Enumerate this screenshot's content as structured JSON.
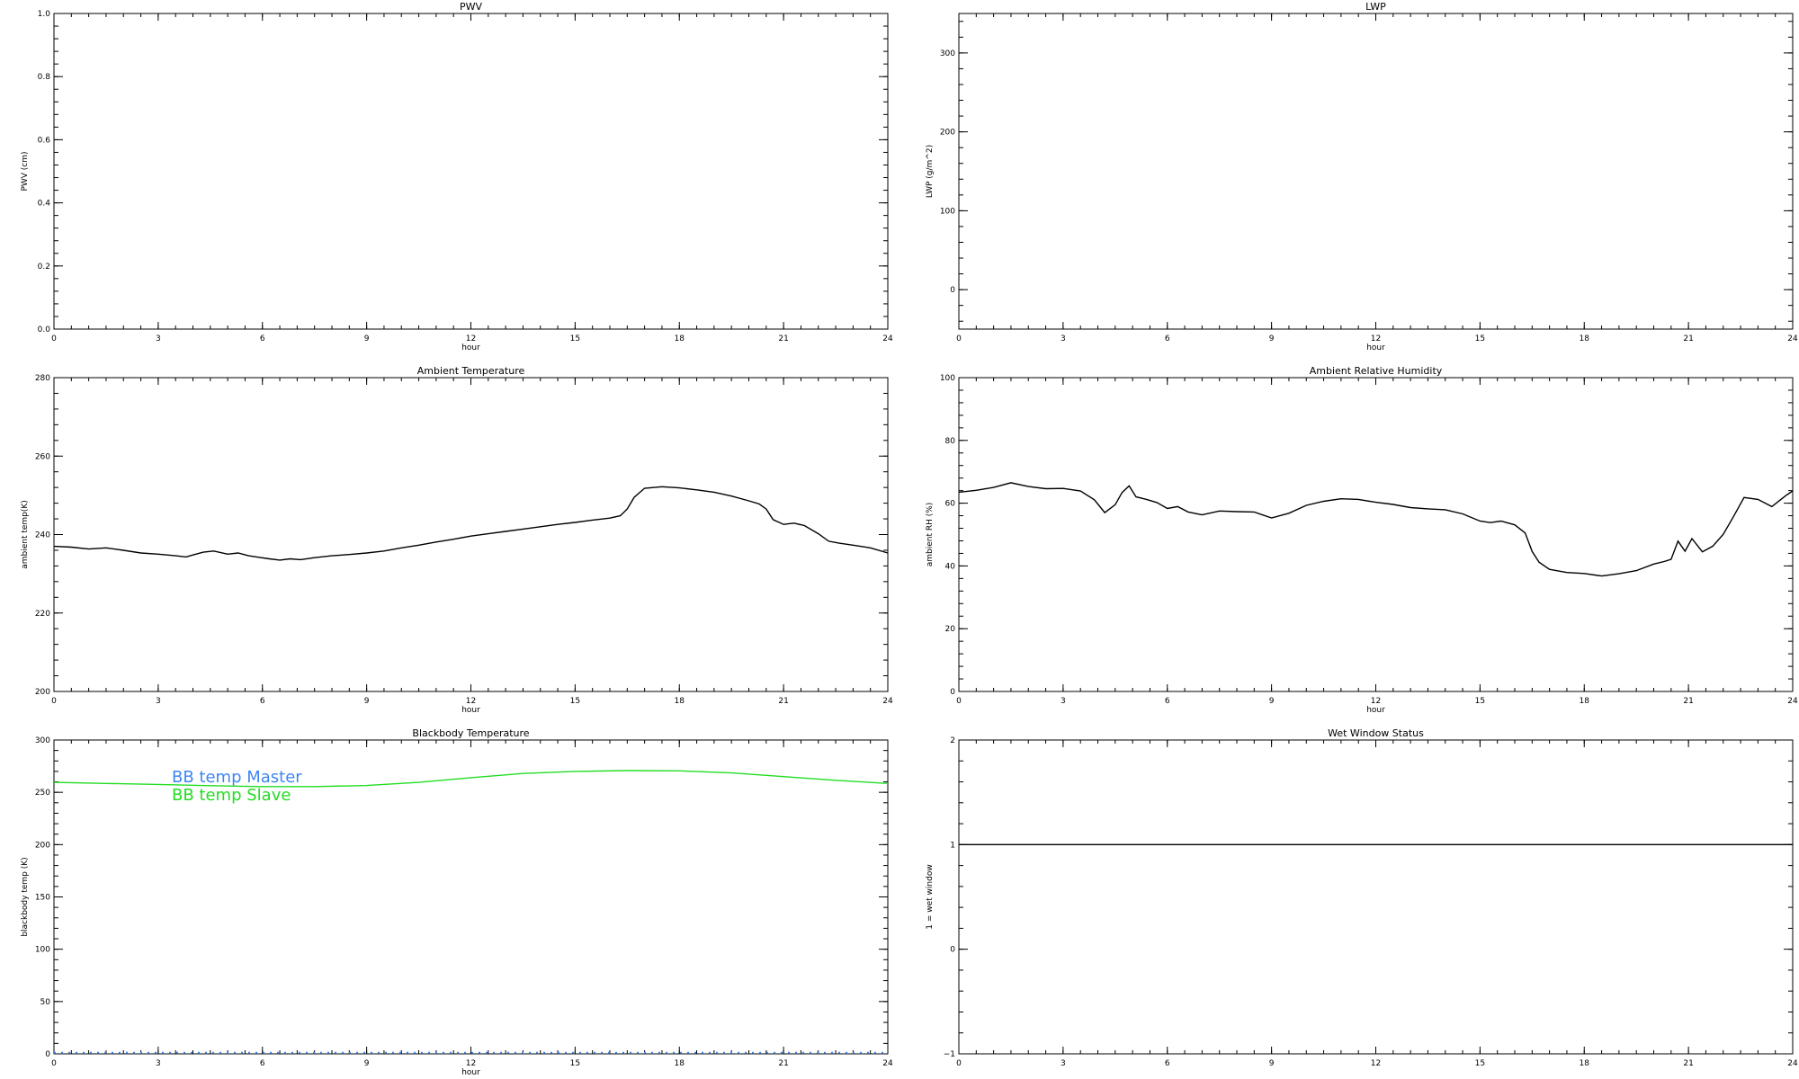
{
  "chart_data": [
    {
      "type": "line",
      "title": "PWV",
      "xlabel": "hour",
      "ylabel": "PWV (cm)",
      "xlim": [
        0,
        24
      ],
      "ylim": [
        0,
        1
      ],
      "xticks": [
        "0",
        "3",
        "6",
        "9",
        "12",
        "15",
        "18",
        "21",
        "24"
      ],
      "yticks": [
        "0.0",
        "0.2",
        "0.4",
        "0.6",
        "0.8",
        "1.0"
      ],
      "series": []
    },
    {
      "type": "line",
      "title": "LWP",
      "xlabel": "hour",
      "ylabel": "LWP (g/m^2)",
      "xlim": [
        0,
        24
      ],
      "ylim": [
        -50,
        350
      ],
      "xticks": [
        "0",
        "3",
        "6",
        "9",
        "12",
        "15",
        "18",
        "21",
        "24"
      ],
      "yticks": [
        "0",
        "100",
        "200",
        "300"
      ],
      "series": []
    },
    {
      "type": "line",
      "title": "Ambient Temperature",
      "xlabel": "hour",
      "ylabel": "ambient temp(K)",
      "xlim": [
        0,
        24
      ],
      "ylim": [
        200,
        280
      ],
      "xticks": [
        "0",
        "3",
        "6",
        "9",
        "12",
        "15",
        "18",
        "21",
        "24"
      ],
      "yticks": [
        "200",
        "220",
        "240",
        "260",
        "280"
      ],
      "series": [
        {
          "color": "#000000",
          "x": [
            0,
            0.5,
            1,
            1.5,
            2,
            2.5,
            3,
            3.5,
            3.8,
            4,
            4.3,
            4.6,
            5,
            5.3,
            5.6,
            5.9,
            6.2,
            6.5,
            6.8,
            7.1,
            7.5,
            8,
            8.5,
            9,
            9.5,
            10,
            10.5,
            11,
            11.5,
            12,
            12.5,
            13,
            13.5,
            14,
            14.5,
            15,
            15.5,
            16,
            16.3,
            16.5,
            16.7,
            17,
            17.5,
            18,
            18.5,
            19,
            19.5,
            20,
            20.3,
            20.5,
            20.7,
            21,
            21.3,
            21.6,
            22,
            22.3,
            22.6,
            23,
            23.5,
            24
          ],
          "y": [
            237,
            236.8,
            236.3,
            236.6,
            236,
            235.3,
            235,
            234.6,
            234.3,
            234.8,
            235.5,
            235.8,
            235,
            235.3,
            234.6,
            234.2,
            233.8,
            233.5,
            233.8,
            233.6,
            234.1,
            234.6,
            234.9,
            235.3,
            235.8,
            236.6,
            237.3,
            238.1,
            238.8,
            239.6,
            240.2,
            240.8,
            241.4,
            242,
            242.6,
            243.1,
            243.7,
            244.2,
            244.8,
            246.5,
            249.5,
            251.8,
            252.2,
            251.9,
            251.4,
            250.8,
            249.8,
            248.6,
            247.8,
            246.5,
            243.8,
            242.6,
            242.9,
            242.3,
            240.2,
            238.3,
            237.8,
            237.3,
            236.6,
            235.3
          ]
        }
      ]
    },
    {
      "type": "line",
      "title": "Ambient Relative Humidity",
      "xlabel": "hour",
      "ylabel": "ambient RH (%)",
      "xlim": [
        0,
        24
      ],
      "ylim": [
        0,
        100
      ],
      "xticks": [
        "0",
        "3",
        "6",
        "9",
        "12",
        "15",
        "18",
        "21",
        "24"
      ],
      "yticks": [
        "0",
        "20",
        "40",
        "60",
        "80",
        "100"
      ],
      "series": [
        {
          "color": "#000000",
          "x": [
            0,
            0.5,
            1,
            1.5,
            2,
            2.5,
            3,
            3.5,
            3.9,
            4.2,
            4.5,
            4.7,
            4.9,
            5.1,
            5.4,
            5.7,
            6,
            6.3,
            6.6,
            7,
            7.5,
            8,
            8.5,
            9,
            9.5,
            10,
            10.5,
            11,
            11.5,
            12,
            12.5,
            13,
            13.5,
            14,
            14.5,
            15,
            15.3,
            15.6,
            16,
            16.3,
            16.5,
            16.7,
            17,
            17.5,
            18,
            18.5,
            19,
            19.5,
            20,
            20.3,
            20.5,
            20.7,
            20.9,
            21.1,
            21.4,
            21.7,
            22,
            22.3,
            22.6,
            23,
            23.4,
            23.8,
            24
          ],
          "y": [
            63.5,
            64.1,
            65,
            66.5,
            65.3,
            64.6,
            64.7,
            63.9,
            61.1,
            57,
            59.5,
            63.4,
            65.5,
            62,
            61.2,
            60.2,
            58.3,
            58.9,
            57.2,
            56.3,
            57.5,
            57.3,
            57.2,
            55.3,
            56.8,
            59.3,
            60.6,
            61.4,
            61.2,
            60.3,
            59.6,
            58.6,
            58.2,
            57.9,
            56.6,
            54.3,
            53.8,
            54.3,
            53.1,
            50.5,
            44.6,
            41.2,
            38.9,
            37.9,
            37.6,
            36.8,
            37.5,
            38.5,
            40.6,
            41.4,
            42.1,
            47.9,
            44.7,
            48.7,
            44.5,
            46.3,
            50.1,
            55.8,
            61.8,
            61.2,
            58.9,
            62.4,
            63.9
          ]
        }
      ]
    },
    {
      "type": "line",
      "title": "Blackbody Temperature",
      "xlabel": "hour",
      "ylabel": "blackbody temp (K)",
      "xlim": [
        0,
        24
      ],
      "ylim": [
        0,
        300
      ],
      "xticks": [
        "0",
        "3",
        "6",
        "9",
        "12",
        "15",
        "18",
        "21",
        "24"
      ],
      "yticks": [
        "0",
        "50",
        "100",
        "150",
        "200",
        "250",
        "300"
      ],
      "legend": [
        {
          "label": "BB temp Master",
          "color": "#3f86f0"
        },
        {
          "label": "BB temp Slave",
          "color": "#22dd22"
        }
      ],
      "series": [
        {
          "color": "#22dd22",
          "x": [
            0,
            1.5,
            3,
            4.5,
            6,
            7.5,
            9,
            10.5,
            12,
            13.5,
            15,
            16.5,
            18,
            19.5,
            21,
            22.5,
            24
          ],
          "y": [
            259.5,
            258.5,
            257.5,
            256.3,
            255.5,
            255.5,
            256.5,
            259.5,
            264,
            268,
            270,
            270.8,
            270.5,
            268.5,
            265,
            261.5,
            258.5
          ]
        },
        {
          "color": "#3f86f0",
          "x": [
            0,
            24
          ],
          "y": [
            1,
            1
          ],
          "dotted": true
        }
      ]
    },
    {
      "type": "line",
      "title": "Wet Window Status",
      "xlabel": "",
      "ylabel": "1 = wet window",
      "xlim": [
        0,
        24
      ],
      "ylim": [
        -1,
        2
      ],
      "xticks": [
        "0",
        "3",
        "6",
        "9",
        "12",
        "15",
        "18",
        "21",
        "24"
      ],
      "yticks": [
        "−1",
        "0",
        "1",
        "2"
      ],
      "series": [
        {
          "color": "#000000",
          "x": [
            0,
            24
          ],
          "y": [
            1,
            1
          ]
        }
      ]
    }
  ]
}
